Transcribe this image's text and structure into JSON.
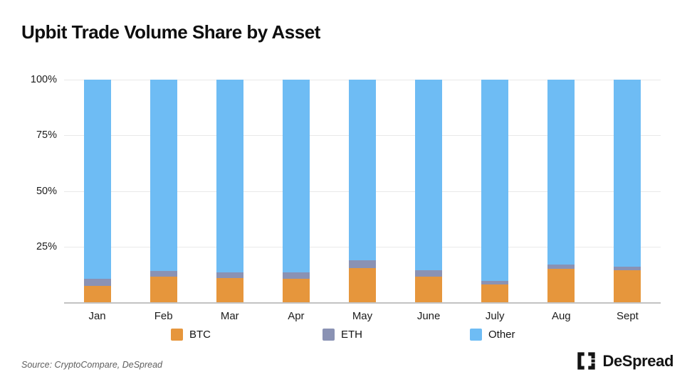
{
  "title": "Upbit Trade Volume Share by Asset",
  "source_note": "Source: CryptoCompare, DeSpread",
  "brand": {
    "name": "DeSpread"
  },
  "legend": {
    "btc_label": "BTC",
    "eth_label": "ETH",
    "other_label": "Other"
  },
  "colors": {
    "btc": "#E6963C",
    "eth": "#8A92B4",
    "other": "#6EBCF4",
    "gridline": "#E9E9E9",
    "baseline": "#C3C3C3",
    "title_text": "#0E0E0E",
    "axis_text": "#1C1C1C",
    "source_text": "#5E5E5E"
  },
  "chart_data": {
    "type": "bar",
    "stacked": true,
    "title": "Upbit Trade Volume Share by Asset",
    "xlabel": "",
    "ylabel": "",
    "ylim": [
      0,
      100
    ],
    "grid": true,
    "legend_position": "bottom",
    "categories": [
      "Jan",
      "Feb",
      "Mar",
      "Apr",
      "May",
      "June",
      "July",
      "Aug",
      "Sept"
    ],
    "series": [
      {
        "name": "BTC",
        "color": "#E6963C",
        "values": [
          7.5,
          11.5,
          11,
          10.5,
          15.5,
          11.5,
          8,
          15,
          14.5
        ]
      },
      {
        "name": "ETH",
        "color": "#8A92B4",
        "values": [
          3,
          2.5,
          2.5,
          3,
          3.5,
          3,
          1.5,
          2,
          1.5
        ]
      },
      {
        "name": "Other",
        "color": "#6EBCF4",
        "values": [
          89.5,
          86,
          86.5,
          86.5,
          81,
          85.5,
          90.5,
          83,
          84
        ]
      }
    ],
    "yticks": [
      {
        "label": "100%",
        "value": 100
      },
      {
        "label": "75%",
        "value": 75
      },
      {
        "label": "50%",
        "value": 50
      },
      {
        "label": "25%",
        "value": 25
      }
    ]
  }
}
